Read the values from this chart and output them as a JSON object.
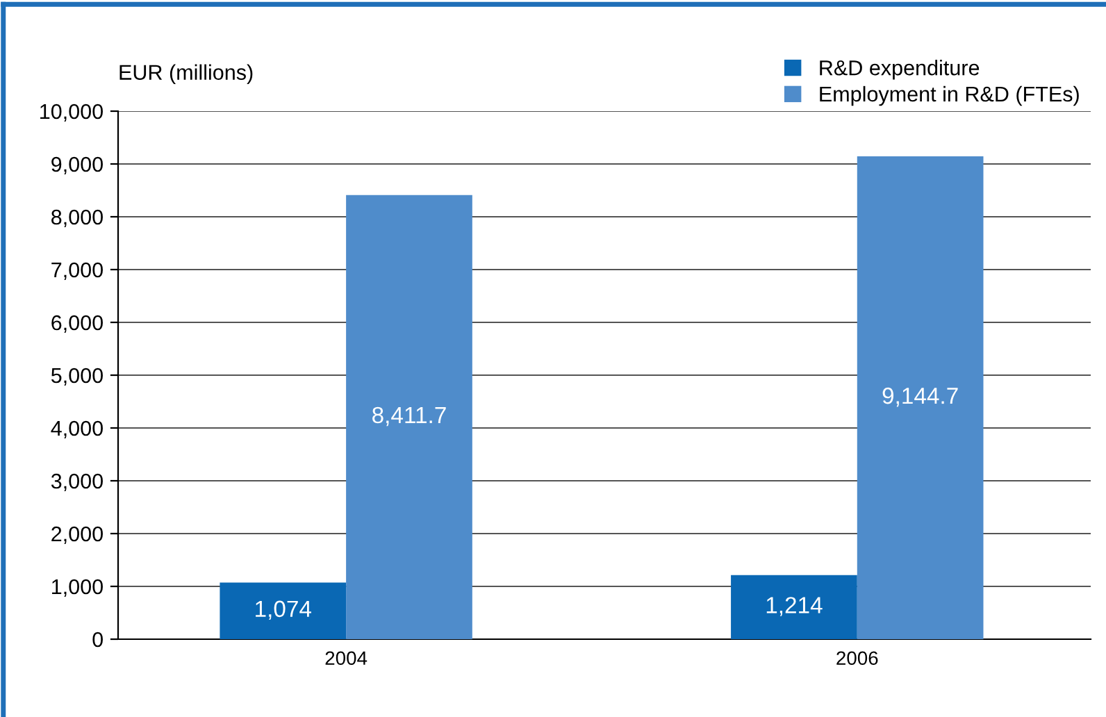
{
  "chart_data": {
    "type": "bar",
    "ylabel": "EUR (millions)",
    "categories": [
      "2004",
      "2006"
    ],
    "series": [
      {
        "name": "R&D expenditure",
        "color": "#0a68b4",
        "values": [
          1074,
          1214
        ],
        "value_labels": [
          "1,074",
          "1,214"
        ]
      },
      {
        "name": "Employment in R&D (FTEs)",
        "color": "#4f8ccb",
        "values": [
          8411.7,
          9144.7
        ],
        "value_labels": [
          "8,411.7",
          "9,144.7"
        ]
      }
    ],
    "ylim": [
      0,
      10000
    ],
    "yticks": [
      0,
      {
        "value": 1000,
        "label": "1,000"
      },
      {
        "value": 2000,
        "label": "2,000"
      },
      {
        "value": 3000,
        "label": "3,000"
      },
      {
        "value": 4000,
        "label": "4,000"
      },
      {
        "value": 5000,
        "label": "5,000"
      },
      {
        "value": 6000,
        "label": "6,000"
      },
      {
        "value": 7000,
        "label": "7,000"
      },
      {
        "value": 8000,
        "label": "8,000"
      },
      {
        "value": 9000,
        "label": "9,000"
      },
      {
        "value": 10000,
        "label": "10,000"
      }
    ],
    "grid": "y",
    "legend": "top right"
  }
}
